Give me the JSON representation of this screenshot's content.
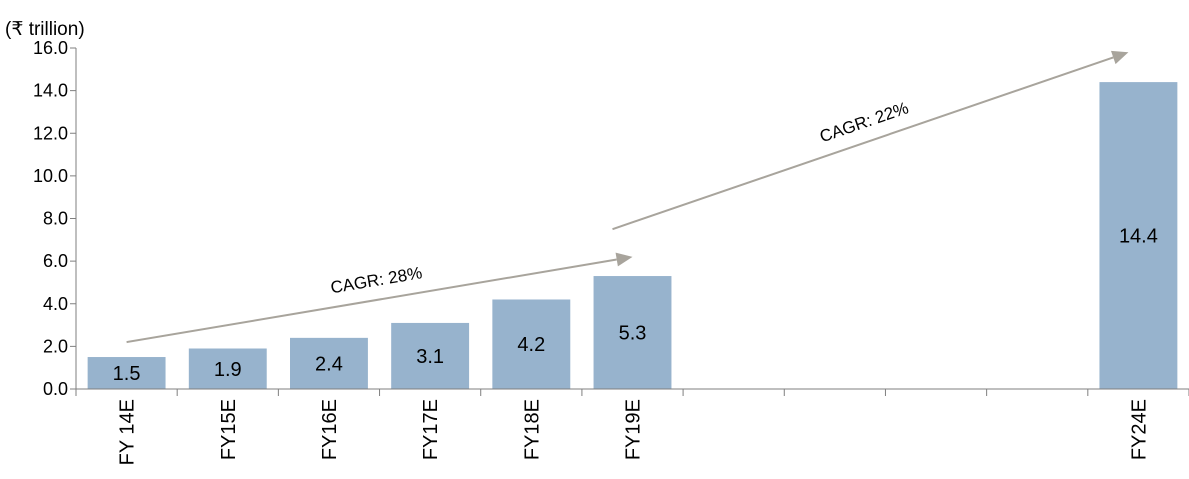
{
  "chart_data": {
    "type": "bar",
    "title": "",
    "ylabel": "(₹ trillion)",
    "xlabel": "",
    "ylim": [
      0,
      16
    ],
    "yticks": [
      "0.0",
      "2.0",
      "4.0",
      "6.0",
      "8.0",
      "10.0",
      "12.0",
      "14.0",
      "16.0"
    ],
    "categories": [
      "FY 14E",
      "FY15E",
      "FY16E",
      "FY17E",
      "FY18E",
      "FY19E",
      "",
      "",
      "",
      "",
      "FY24E"
    ],
    "values": [
      1.5,
      1.9,
      2.4,
      3.1,
      4.2,
      5.3,
      null,
      null,
      null,
      null,
      14.4
    ],
    "data_labels": [
      "1.5",
      "1.9",
      "2.4",
      "3.1",
      "4.2",
      "5.3",
      "",
      "",
      "",
      "",
      "14.4"
    ],
    "grid": false,
    "legend": "none",
    "bar_color": "#97b3cd",
    "annotations": [
      {
        "text": "CAGR: 28%",
        "from_category": "FY 14E",
        "to_category": "FY19E",
        "from_value": 2.2,
        "to_value": 6.2
      },
      {
        "text": "CAGR: 22%",
        "from_category": "FY19E",
        "to_category": "FY24E",
        "from_value": 7.5,
        "to_value": 15.8
      }
    ],
    "arrow_color": "#a8a49c"
  }
}
